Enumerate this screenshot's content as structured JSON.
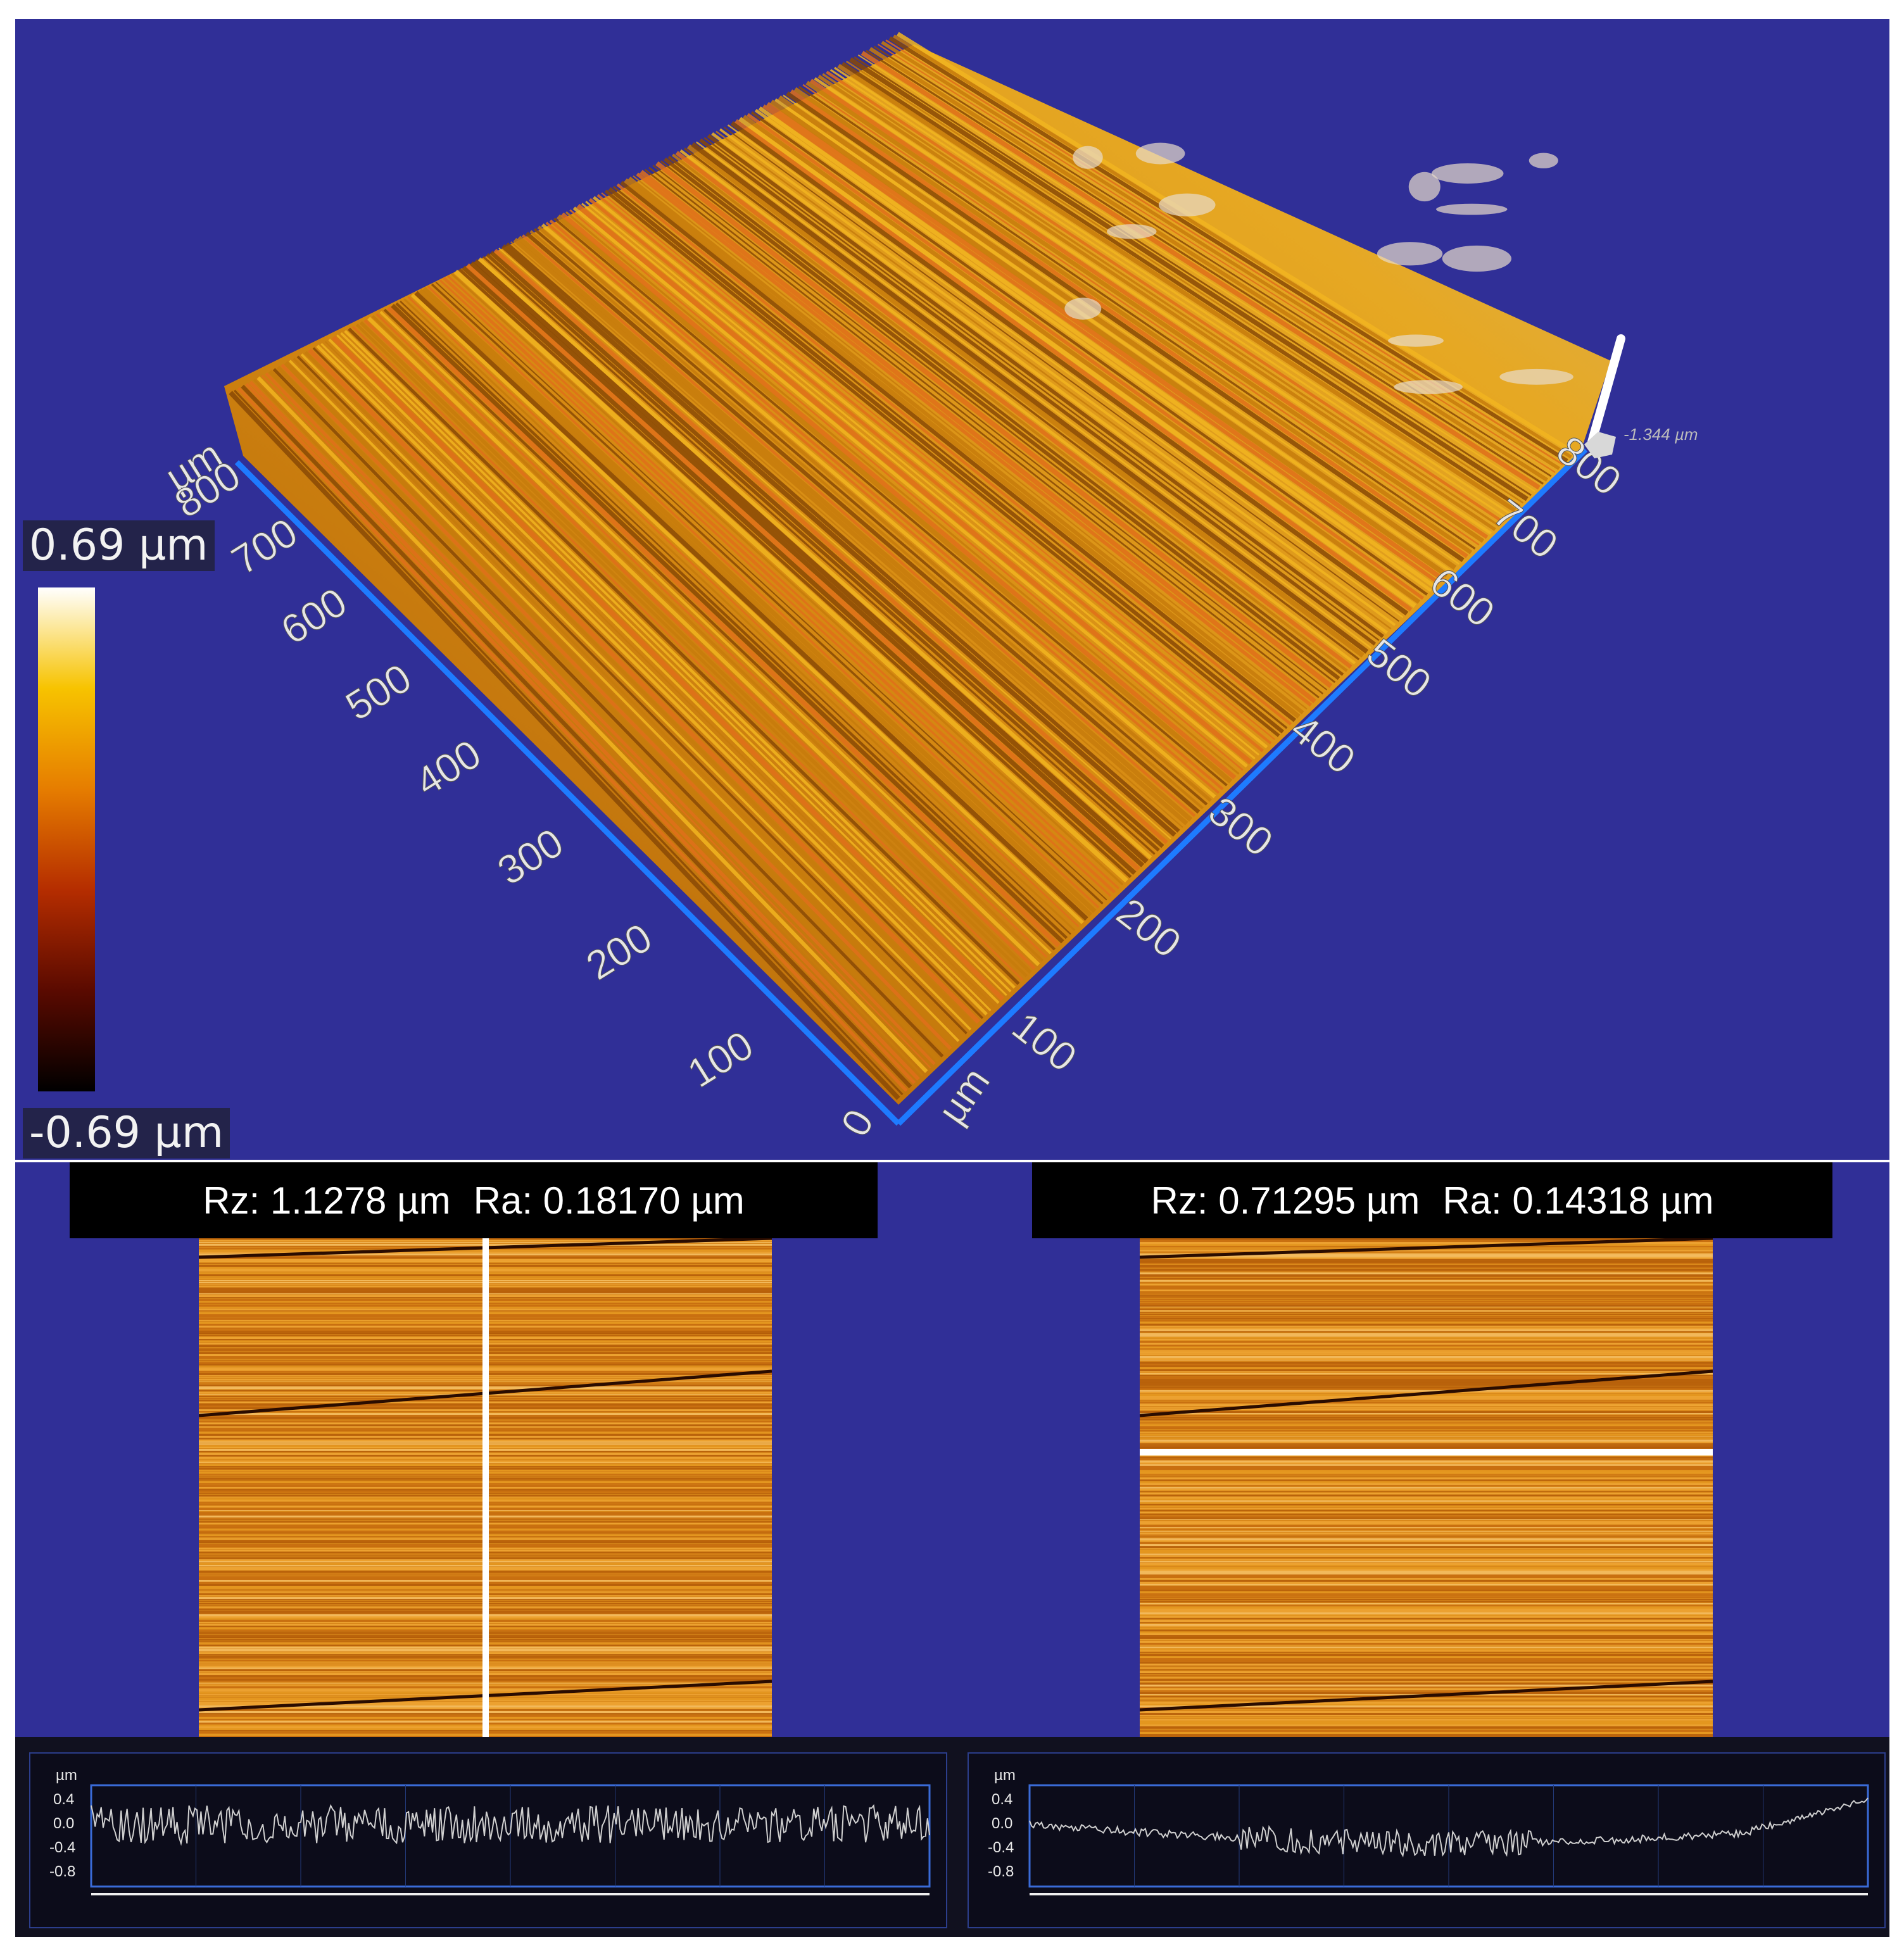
{
  "colorbar": {
    "max_label": "0.69 µm",
    "min_label": "-0.69 µm",
    "colors": [
      "#000000",
      "#5a0a00",
      "#b52d00",
      "#e67d00",
      "#f7c300",
      "#ffffff"
    ]
  },
  "surface_3d": {
    "left_axis_unit": "µm",
    "left_axis_ticks": [
      "800",
      "700",
      "600",
      "500",
      "400",
      "300",
      "200",
      "100",
      "0"
    ],
    "right_axis_unit": "µm",
    "right_axis_ticks": [
      "100",
      "200",
      "300",
      "400",
      "500",
      "600",
      "700",
      "800"
    ],
    "z_scale_label": "-1.344 µm",
    "axis_color": "#1e7bff"
  },
  "panels": [
    {
      "stats": {
        "rz": "Rz: 1.1278 µm",
        "ra": "Ra: 0.18170 µm"
      },
      "scan_line": "vertical",
      "profile": {
        "unit": "µm",
        "ticks": [
          "0.4",
          "0.0",
          "-0.4",
          "-0.8"
        ]
      }
    },
    {
      "stats": {
        "rz": "Rz: 0.71295 µm",
        "ra": "Ra: 0.14318 µm"
      },
      "scan_line": "horizontal",
      "profile": {
        "unit": "µm",
        "ticks": [
          "0.4",
          "0.0",
          "-0.4",
          "-0.8"
        ]
      }
    }
  ],
  "colors": {
    "background_blue": "#302f97",
    "surface_orange": "#d98a10",
    "scan_line": "#ffffff"
  }
}
